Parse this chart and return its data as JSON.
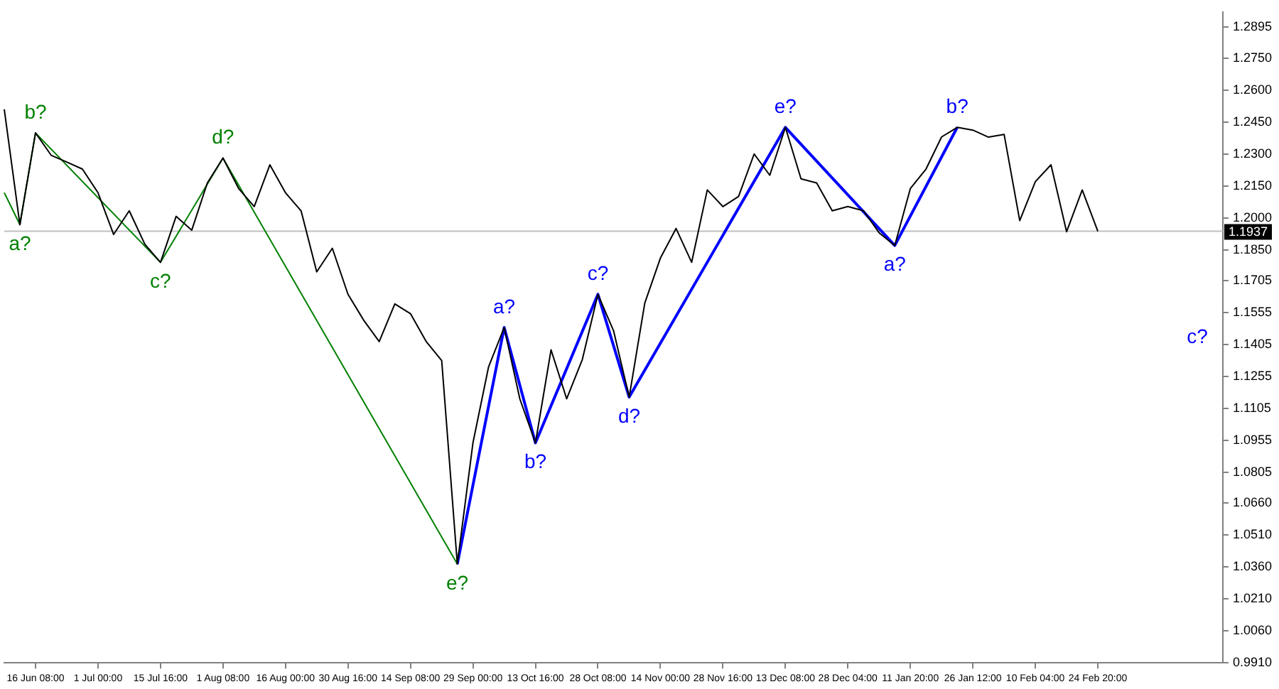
{
  "chart_data": {
    "type": "line",
    "grid": false,
    "legend": false,
    "marker": "none",
    "line_style": "solid",
    "categories": [
      null,
      null,
      "16 Jun 08:00",
      null,
      null,
      null,
      "1 Jul 00:00",
      null,
      null,
      null,
      "15 Jul 16:00",
      null,
      null,
      null,
      "1 Aug 08:00",
      null,
      null,
      null,
      "16 Aug 00:00",
      null,
      null,
      null,
      "30 Aug 16:00",
      null,
      null,
      null,
      "14 Sep 08:00",
      null,
      null,
      null,
      "29 Sep 00:00",
      null,
      null,
      null,
      "13 Oct 16:00",
      null,
      null,
      null,
      "28 Oct 08:00",
      null,
      null,
      null,
      "14 Nov 00:00",
      null,
      null,
      null,
      "28 Nov 16:00",
      null,
      null,
      null,
      "13 Dec 08:00",
      null,
      null,
      null,
      "28 Dec 04:00",
      null,
      null,
      null,
      "11 Jan 20:00",
      null,
      null,
      null,
      "26 Jan 12:00",
      null,
      null,
      null,
      "10 Feb 04:00",
      null,
      null,
      null,
      "24 Feb 20:00",
      null,
      null,
      null,
      null,
      null,
      null,
      null,
      null
    ],
    "ylim": [
      0.991,
      1.2967
    ],
    "yticks": [
      1.2895,
      {
        "value": 1.275,
        "label": "1.2750"
      },
      {
        "value": 1.26,
        "label": "1.2600"
      },
      {
        "value": 1.245,
        "label": "1.2450"
      },
      {
        "value": 1.23,
        "label": "1.2300"
      },
      {
        "value": 1.215,
        "label": "1.2150"
      },
      {
        "value": 1.2,
        "label": "1.2000"
      },
      {
        "value": 1.185,
        "label": "1.1850"
      },
      1.1705,
      1.1555,
      1.1405,
      1.1255,
      1.1105,
      1.0955,
      1.0805,
      {
        "value": 1.066,
        "label": "1.0660"
      },
      {
        "value": 1.051,
        "label": "1.0510"
      },
      {
        "value": 1.036,
        "label": "1.0360"
      },
      {
        "value": 1.021,
        "label": "1.0210"
      },
      {
        "value": 1.006,
        "label": "1.0060"
      },
      {
        "value": 0.991,
        "label": "0.9910"
      }
    ],
    "series": [
      {
        "color": "#000000",
        "values": [
          1.251,
          1.1968,
          1.2399,
          1.2294,
          1.2262,
          1.2229,
          1.2118,
          1.1922,
          1.2033,
          1.1876,
          1.1791,
          1.2007,
          1.1942,
          1.2164,
          1.2281,
          1.2138,
          1.2053,
          1.2249,
          1.2118,
          1.2033,
          1.1746,
          1.1857,
          1.1641,
          1.152,
          1.1419,
          1.1596,
          1.155,
          1.142,
          1.133,
          1.0374,
          1.0943,
          1.13,
          1.1485,
          1.115,
          1.0943,
          1.138,
          1.115,
          1.1334,
          1.1641,
          1.147,
          1.1158,
          1.16,
          1.1811,
          1.195,
          1.1791,
          1.2131,
          1.2053,
          1.21,
          1.23,
          1.22,
          1.2425,
          1.2183,
          1.2164,
          1.2033,
          1.2053,
          1.2033,
          1.193,
          1.187,
          1.2138,
          1.2229,
          1.238,
          1.2425,
          1.2412,
          1.2379,
          1.2392,
          1.1987,
          1.217,
          1.2249,
          1.1935,
          1.2131,
          1.1937,
          null,
          null,
          null,
          null,
          null,
          null,
          null,
          null
        ]
      },
      {
        "color": "#008000",
        "values": [
          1.2118,
          1.1968,
          1.2399,
          null,
          null,
          null,
          null,
          null,
          null,
          null,
          1.1791,
          null,
          null,
          null,
          1.2281,
          null,
          null,
          null,
          null,
          null,
          null,
          null,
          null,
          null,
          null,
          null,
          null,
          null,
          null,
          1.0374,
          null,
          null,
          null,
          null,
          null,
          null,
          null,
          null,
          null,
          null,
          null,
          null,
          null,
          null,
          null,
          null,
          null,
          null,
          null,
          null,
          null,
          null,
          null,
          null,
          null,
          null,
          null,
          null,
          null,
          null,
          null,
          null,
          null,
          null,
          null,
          null,
          null,
          null,
          null,
          null,
          null,
          null,
          null,
          null,
          null,
          null,
          null,
          null,
          null
        ]
      },
      {
        "color": "#0000ff",
        "values": [
          null,
          null,
          null,
          null,
          null,
          null,
          null,
          null,
          null,
          null,
          null,
          null,
          null,
          null,
          null,
          null,
          null,
          null,
          null,
          null,
          null,
          null,
          null,
          null,
          null,
          null,
          null,
          null,
          null,
          1.0374,
          null,
          null,
          1.1485,
          null,
          1.0943,
          null,
          null,
          null,
          1.1641,
          null,
          1.1158,
          null,
          null,
          null,
          null,
          null,
          null,
          null,
          null,
          null,
          1.2425,
          null,
          null,
          null,
          null,
          null,
          null,
          1.187,
          null,
          null,
          null,
          1.2425,
          null,
          null,
          null,
          null,
          null,
          null,
          null,
          null,
          null,
          null,
          null,
          null,
          null,
          null,
          null,
          null,
          null
        ]
      }
    ],
    "ref_lines": [
      {
        "axis": "y",
        "value": 1.1937,
        "label": "1.1937",
        "color": "#c0c0c0"
      }
    ],
    "annotations": [
      "a?",
      "b?",
      "c?",
      "d?",
      "e?",
      "a?",
      "b?",
      "c?",
      "d?",
      "e?",
      "a?",
      "b?",
      "c?"
    ]
  }
}
